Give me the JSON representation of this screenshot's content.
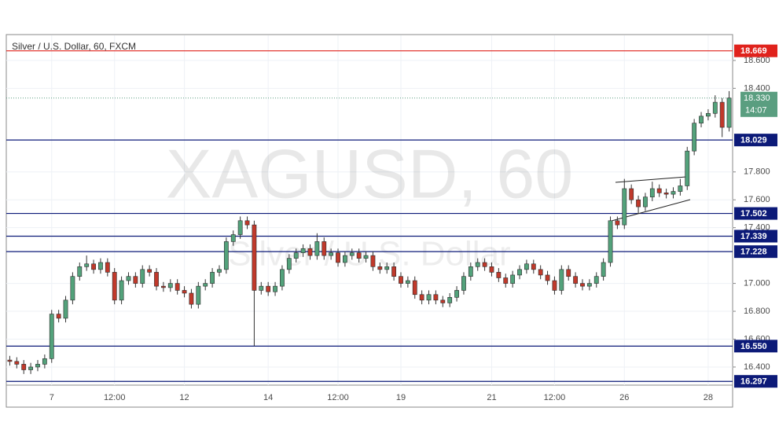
{
  "chart_data": {
    "type": "candlestick",
    "title": "Silver / U.S. Dollar, 60, FXCM",
    "watermark": "XAGUSD, 60",
    "watermark_subtitle": "Silver / U.S. Dollar",
    "up_color": "#53a27b",
    "down_color": "#c0392b",
    "grid": true,
    "ylim": [
      16.27,
      18.78
    ],
    "yticks": [
      {
        "value": 16.4,
        "label": "16.400"
      },
      {
        "value": 16.6,
        "label": "16.600"
      },
      {
        "value": 16.8,
        "label": "16.800"
      },
      {
        "value": 17.0,
        "label": "17.000"
      },
      {
        "value": 17.4,
        "label": "17.400"
      },
      {
        "value": 17.6,
        "label": "17.600"
      },
      {
        "value": 17.8,
        "label": "17.800"
      },
      {
        "value": 18.4,
        "label": "18.400"
      },
      {
        "value": 18.6,
        "label": "18.600"
      }
    ],
    "categories": [
      null,
      null,
      null,
      null,
      null,
      null,
      "7",
      null,
      null,
      null,
      null,
      null,
      null,
      null,
      null,
      "12:00",
      null,
      null,
      null,
      null,
      null,
      null,
      null,
      null,
      null,
      "12",
      null,
      null,
      null,
      null,
      null,
      null,
      null,
      null,
      null,
      null,
      null,
      "14",
      null,
      null,
      null,
      null,
      null,
      null,
      null,
      null,
      null,
      "12:00",
      null,
      null,
      null,
      null,
      null,
      null,
      null,
      null,
      "19",
      null,
      null,
      null,
      null,
      null,
      null,
      null,
      null,
      null,
      null,
      null,
      null,
      "21",
      null,
      null,
      null,
      null,
      null,
      null,
      null,
      null,
      "12:00",
      null,
      null,
      null,
      null,
      null,
      null,
      null,
      null,
      null,
      "26",
      null,
      null,
      null,
      null,
      null,
      null,
      null,
      null,
      null,
      null,
      null,
      "28",
      null,
      null,
      null
    ],
    "open": [
      16.45,
      16.44,
      16.42,
      16.38,
      16.4,
      16.42,
      16.46,
      16.78,
      16.75,
      16.88,
      17.05,
      17.12,
      17.14,
      17.1,
      17.15,
      17.08,
      16.88,
      17.02,
      17.05,
      17.0,
      17.1,
      17.08,
      16.98,
      16.97,
      17.0,
      16.95,
      16.93,
      16.85,
      16.98,
      17.0,
      17.08,
      17.1,
      17.3,
      17.35,
      17.45,
      17.42,
      16.95,
      16.98,
      16.94,
      16.98,
      17.1,
      17.18,
      17.22,
      17.25,
      17.2,
      17.3,
      17.2,
      17.22,
      17.15,
      17.2,
      17.22,
      17.18,
      17.2,
      17.12,
      17.1,
      17.12,
      17.05,
      17.0,
      17.02,
      16.92,
      16.88,
      16.92,
      16.88,
      16.86,
      16.9,
      16.95,
      17.05,
      17.12,
      17.15,
      17.12,
      17.08,
      17.04,
      17.0,
      17.06,
      17.1,
      17.14,
      17.1,
      17.06,
      17.02,
      16.95,
      17.1,
      17.05,
      17.0,
      16.98,
      17.0,
      17.05,
      17.15,
      17.45,
      17.42,
      17.68,
      17.6,
      17.55,
      17.62,
      17.68,
      17.65,
      17.64,
      17.66,
      17.7,
      17.95,
      18.15,
      18.2,
      18.22,
      18.3,
      18.12
    ],
    "high": [
      16.48,
      16.47,
      16.45,
      16.43,
      16.45,
      16.49,
      16.81,
      16.81,
      16.91,
      17.08,
      17.15,
      17.2,
      17.17,
      17.18,
      17.18,
      17.11,
      17.05,
      17.08,
      17.08,
      17.13,
      17.13,
      17.11,
      17.01,
      17.03,
      17.03,
      16.98,
      16.96,
      17.01,
      17.03,
      17.11,
      17.13,
      17.33,
      17.38,
      17.48,
      17.48,
      17.45,
      17.01,
      17.01,
      17.01,
      17.13,
      17.21,
      17.25,
      17.28,
      17.28,
      17.36,
      17.33,
      17.25,
      17.25,
      17.23,
      17.25,
      17.25,
      17.23,
      17.23,
      17.15,
      17.15,
      17.15,
      17.08,
      17.05,
      17.05,
      16.95,
      16.95,
      16.95,
      16.91,
      16.93,
      16.98,
      17.08,
      17.15,
      17.18,
      17.18,
      17.15,
      17.11,
      17.07,
      17.09,
      17.13,
      17.17,
      17.17,
      17.13,
      17.09,
      17.05,
      17.13,
      17.13,
      17.08,
      17.03,
      17.03,
      17.08,
      17.18,
      17.48,
      17.48,
      17.75,
      17.71,
      17.63,
      17.65,
      17.73,
      17.71,
      17.68,
      17.69,
      17.75,
      17.98,
      18.18,
      18.23,
      18.25,
      18.35,
      18.33,
      18.38
    ],
    "low": [
      16.41,
      16.39,
      16.35,
      16.35,
      16.37,
      16.39,
      16.43,
      16.72,
      16.72,
      16.85,
      17.02,
      17.09,
      17.07,
      17.07,
      17.05,
      16.85,
      16.85,
      16.99,
      16.97,
      16.97,
      17.05,
      16.95,
      16.94,
      16.94,
      16.92,
      16.9,
      16.82,
      16.82,
      16.95,
      16.97,
      17.05,
      17.07,
      17.27,
      17.32,
      17.39,
      16.55,
      16.92,
      16.91,
      16.91,
      16.95,
      17.07,
      17.15,
      17.19,
      17.17,
      17.17,
      17.17,
      17.17,
      17.12,
      17.12,
      17.17,
      17.15,
      17.15,
      17.09,
      17.07,
      17.07,
      17.02,
      16.97,
      16.97,
      16.89,
      16.85,
      16.85,
      16.85,
      16.83,
      16.83,
      16.87,
      16.92,
      17.02,
      17.09,
      17.09,
      17.05,
      17.01,
      16.97,
      16.97,
      17.03,
      17.07,
      17.07,
      17.03,
      16.99,
      16.92,
      16.92,
      17.02,
      16.97,
      16.95,
      16.95,
      16.97,
      17.02,
      17.12,
      17.39,
      17.39,
      17.57,
      17.5,
      17.52,
      17.59,
      17.62,
      17.61,
      17.61,
      17.63,
      17.67,
      17.92,
      18.12,
      18.17,
      18.19,
      18.05,
      18.09
    ],
    "close": [
      16.44,
      16.42,
      16.38,
      16.4,
      16.42,
      16.46,
      16.78,
      16.75,
      16.88,
      17.05,
      17.12,
      17.14,
      17.1,
      17.15,
      17.08,
      16.88,
      17.02,
      17.05,
      17.0,
      17.1,
      17.08,
      16.98,
      16.97,
      17.0,
      16.95,
      16.93,
      16.85,
      16.98,
      17.0,
      17.08,
      17.1,
      17.3,
      17.35,
      17.45,
      17.42,
      16.95,
      16.98,
      16.94,
      16.98,
      17.1,
      17.18,
      17.22,
      17.25,
      17.2,
      17.3,
      17.2,
      17.22,
      17.15,
      17.2,
      17.22,
      17.18,
      17.2,
      17.12,
      17.1,
      17.12,
      17.05,
      17.0,
      17.02,
      16.92,
      16.88,
      16.92,
      16.88,
      16.86,
      16.9,
      16.95,
      17.05,
      17.12,
      17.15,
      17.12,
      17.08,
      17.04,
      17.0,
      17.06,
      17.1,
      17.14,
      17.1,
      17.06,
      17.02,
      16.95,
      17.1,
      17.05,
      17.0,
      16.98,
      17.0,
      17.05,
      17.15,
      17.45,
      17.42,
      17.68,
      17.6,
      17.55,
      17.62,
      17.68,
      17.65,
      17.64,
      17.66,
      17.7,
      17.95,
      18.15,
      18.2,
      18.22,
      18.3,
      18.12,
      18.33
    ],
    "levels": [
      {
        "value": 18.669,
        "label": "18.669",
        "color": "#e0221c"
      },
      {
        "value": 18.029,
        "label": "18.029",
        "color": "#0c1a78"
      },
      {
        "value": 17.502,
        "label": "17.502",
        "color": "#0c1a78"
      },
      {
        "value": 17.339,
        "label": "17.339",
        "color": "#0c1a78"
      },
      {
        "value": 17.228,
        "label": "17.228",
        "color": "#0c1a78"
      },
      {
        "value": 16.55,
        "label": "16.550",
        "color": "#0c1a78"
      },
      {
        "value": 16.297,
        "label": "16.297",
        "color": "#0c1a78"
      }
    ],
    "last": {
      "value": 18.33,
      "label": "18.330",
      "countdown": "14:07",
      "color": "#5a9e80"
    }
  }
}
